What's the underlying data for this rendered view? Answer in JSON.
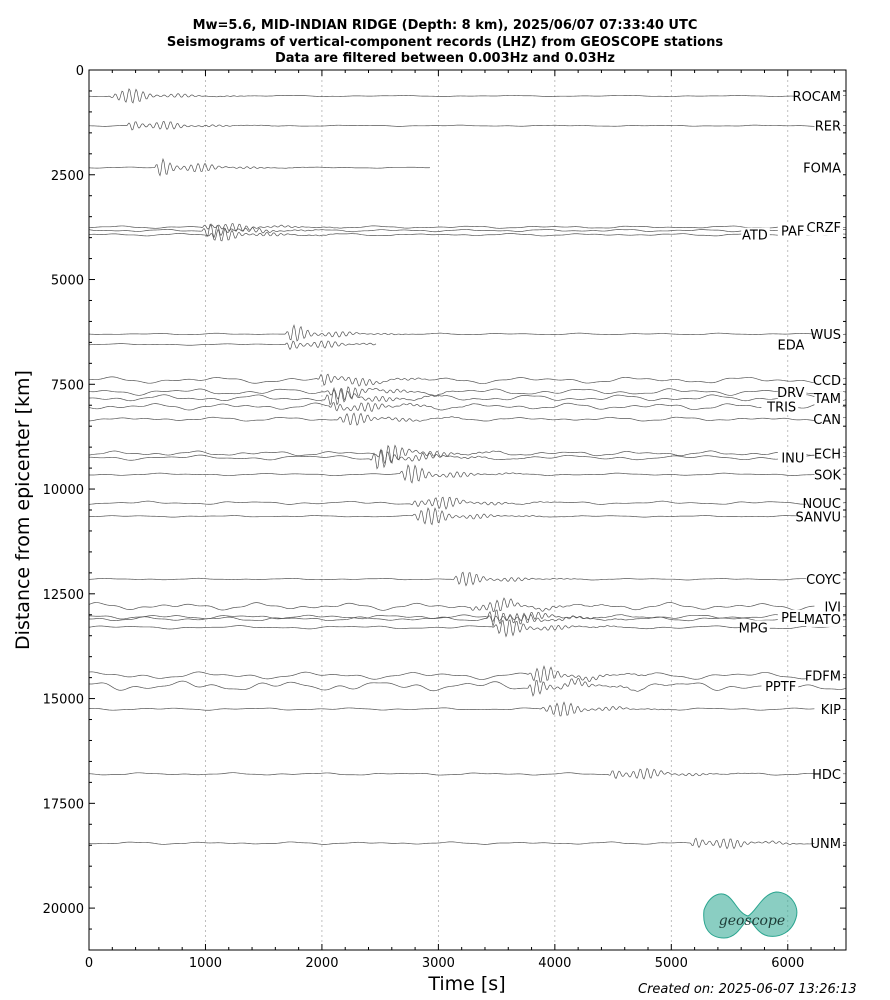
{
  "titles": [
    "Mw=5.6, MID-INDIAN RIDGE (Depth: 8 km), 2025/06/07 07:33:40 UTC",
    "Seismograms of vertical-component records (LHZ) from GEOSCOPE stations",
    "Data are filtered between 0.003Hz and 0.03Hz"
  ],
  "footer": {
    "created": "Created on: 2025-06-07 13:26:13"
  },
  "logo": {
    "text": "geoscope",
    "color": "#2aa58f"
  },
  "chart_data": {
    "type": "line",
    "xlabel": "Time [s]",
    "ylabel": "Distance from epicenter [km]",
    "xlim": [
      0,
      6500
    ],
    "ylim": [
      21000,
      0
    ],
    "xticks": [
      0,
      1000,
      2000,
      3000,
      4000,
      5000,
      6000
    ],
    "yticks": [
      0,
      2500,
      5000,
      7500,
      10000,
      12500,
      15000,
      17500,
      20000
    ],
    "grid": "x-dotted",
    "trace_color": "#555555",
    "stations": [
      {
        "name": "ROCAM",
        "distance": 620,
        "arrival": 200,
        "end": 6500,
        "noise": 0.15,
        "amp": 380
      },
      {
        "name": "RER",
        "distance": 1330,
        "arrival": 360,
        "end": 6500,
        "noise": 0.15,
        "amp": 330
      },
      {
        "name": "FOMA",
        "distance": 2330,
        "arrival": 600,
        "end": 2930,
        "noise": 0.15,
        "amp": 420
      },
      {
        "name": "CRZF",
        "distance": 3750,
        "arrival": 1000,
        "end": 6500,
        "noise": 0.3,
        "amp": 280
      },
      {
        "name": "ATD",
        "distance": 3930,
        "arrival": 1050,
        "end": 6500,
        "noise": 0.3,
        "amp": 280
      },
      {
        "name": "PAF",
        "distance": 3830,
        "arrival": 1000,
        "end": 6500,
        "noise": 0.3,
        "amp": 280
      },
      {
        "name": "WUS",
        "distance": 6300,
        "arrival": 1720,
        "end": 6500,
        "noise": 0.2,
        "amp": 330
      },
      {
        "name": "EDA",
        "distance": 6550,
        "arrival": 1720,
        "end": 2470,
        "noise": 0.2,
        "amp": 300
      },
      {
        "name": "CCD",
        "distance": 7400,
        "arrival": 2000,
        "end": 6500,
        "noise": 0.8,
        "amp": 350
      },
      {
        "name": "DRV",
        "distance": 7680,
        "arrival": 2050,
        "end": 6500,
        "noise": 0.8,
        "amp": 350
      },
      {
        "name": "TAM",
        "distance": 7830,
        "arrival": 2050,
        "end": 6500,
        "noise": 0.8,
        "amp": 350
      },
      {
        "name": "TRIS",
        "distance": 8030,
        "arrival": 2100,
        "end": 6500,
        "noise": 0.8,
        "amp": 350
      },
      {
        "name": "CAN",
        "distance": 8330,
        "arrival": 2150,
        "end": 6500,
        "noise": 0.5,
        "amp": 300
      },
      {
        "name": "ECH",
        "distance": 9150,
        "arrival": 2500,
        "end": 6500,
        "noise": 0.6,
        "amp": 400
      },
      {
        "name": "INU",
        "distance": 9250,
        "arrival": 2450,
        "end": 6500,
        "noise": 0.6,
        "amp": 400
      },
      {
        "name": "SOK",
        "distance": 9650,
        "arrival": 2700,
        "end": 6500,
        "noise": 0.3,
        "amp": 380
      },
      {
        "name": "NOUC",
        "distance": 10330,
        "arrival": 2800,
        "end": 6500,
        "noise": 0.4,
        "amp": 420
      },
      {
        "name": "SANVU",
        "distance": 10650,
        "arrival": 2800,
        "end": 6500,
        "noise": 0.2,
        "amp": 420
      },
      {
        "name": "COYC",
        "distance": 12150,
        "arrival": 3150,
        "end": 6500,
        "noise": 0.2,
        "amp": 300
      },
      {
        "name": "IVI",
        "distance": 12800,
        "arrival": 3300,
        "end": 6500,
        "noise": 0.9,
        "amp": 380
      },
      {
        "name": "PEL",
        "distance": 13050,
        "arrival": 3450,
        "end": 6500,
        "noise": 0.5,
        "amp": 380
      },
      {
        "name": "MATO",
        "distance": 13100,
        "arrival": 3450,
        "end": 6500,
        "noise": 0.5,
        "amp": 380
      },
      {
        "name": "MPG",
        "distance": 13300,
        "arrival": 3500,
        "end": 6500,
        "noise": 0.4,
        "amp": 380
      },
      {
        "name": "FDFM",
        "distance": 14450,
        "arrival": 3800,
        "end": 6500,
        "noise": 0.9,
        "amp": 350
      },
      {
        "name": "PPTF",
        "distance": 14700,
        "arrival": 3800,
        "end": 6500,
        "noise": 1.2,
        "amp": 350
      },
      {
        "name": "KIP",
        "distance": 15250,
        "arrival": 3900,
        "end": 6500,
        "noise": 0.3,
        "amp": 380
      },
      {
        "name": "HDC",
        "distance": 16800,
        "arrival": 4500,
        "end": 6500,
        "noise": 0.3,
        "amp": 400
      },
      {
        "name": "UNM",
        "distance": 18450,
        "arrival": 5200,
        "end": 6500,
        "noise": 0.3,
        "amp": 400
      }
    ]
  }
}
